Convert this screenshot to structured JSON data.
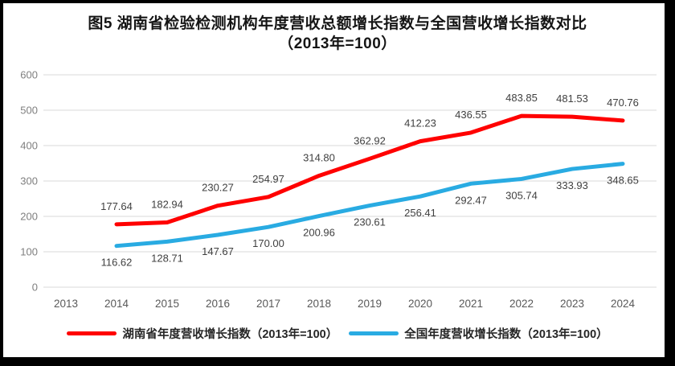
{
  "title": {
    "line1": "图5 湖南省检验检测机构年度营收总额增长指数与全国营收增长指数对比",
    "line2": "（2013年=100）"
  },
  "chart_data": {
    "type": "line",
    "x": [
      2013,
      2014,
      2015,
      2016,
      2017,
      2018,
      2019,
      2020,
      2021,
      2022,
      2023,
      2024
    ],
    "series": [
      {
        "name": "湖南省年度营收增长指数（2013年=100）",
        "color": "#FF0000",
        "x_start": 2014,
        "label_position": "above",
        "values": [
          177.64,
          182.94,
          230.27,
          254.97,
          314.8,
          362.92,
          412.23,
          436.55,
          483.85,
          481.53,
          470.76
        ]
      },
      {
        "name": "全国年度营收增长指数（2013年=100）",
        "color": "#29ABE2",
        "x_start": 2014,
        "label_position": "below",
        "values": [
          116.62,
          128.71,
          147.67,
          170.0,
          200.96,
          230.61,
          256.41,
          292.47,
          305.74,
          333.93,
          348.65
        ]
      }
    ],
    "ylim": [
      0,
      600
    ],
    "y_ticks": [
      0,
      100,
      200,
      300,
      400,
      500,
      600
    ],
    "grid": true,
    "legend_position": "bottom",
    "xlabel": "",
    "ylabel": ""
  },
  "style": {
    "gridline_color": "#D9D9D9",
    "y_tick_color": "#7F7F7F",
    "x_tick_color": "#595959",
    "data_label_color": "#404040",
    "frame_border_color": "#000000",
    "line_width": 5
  }
}
